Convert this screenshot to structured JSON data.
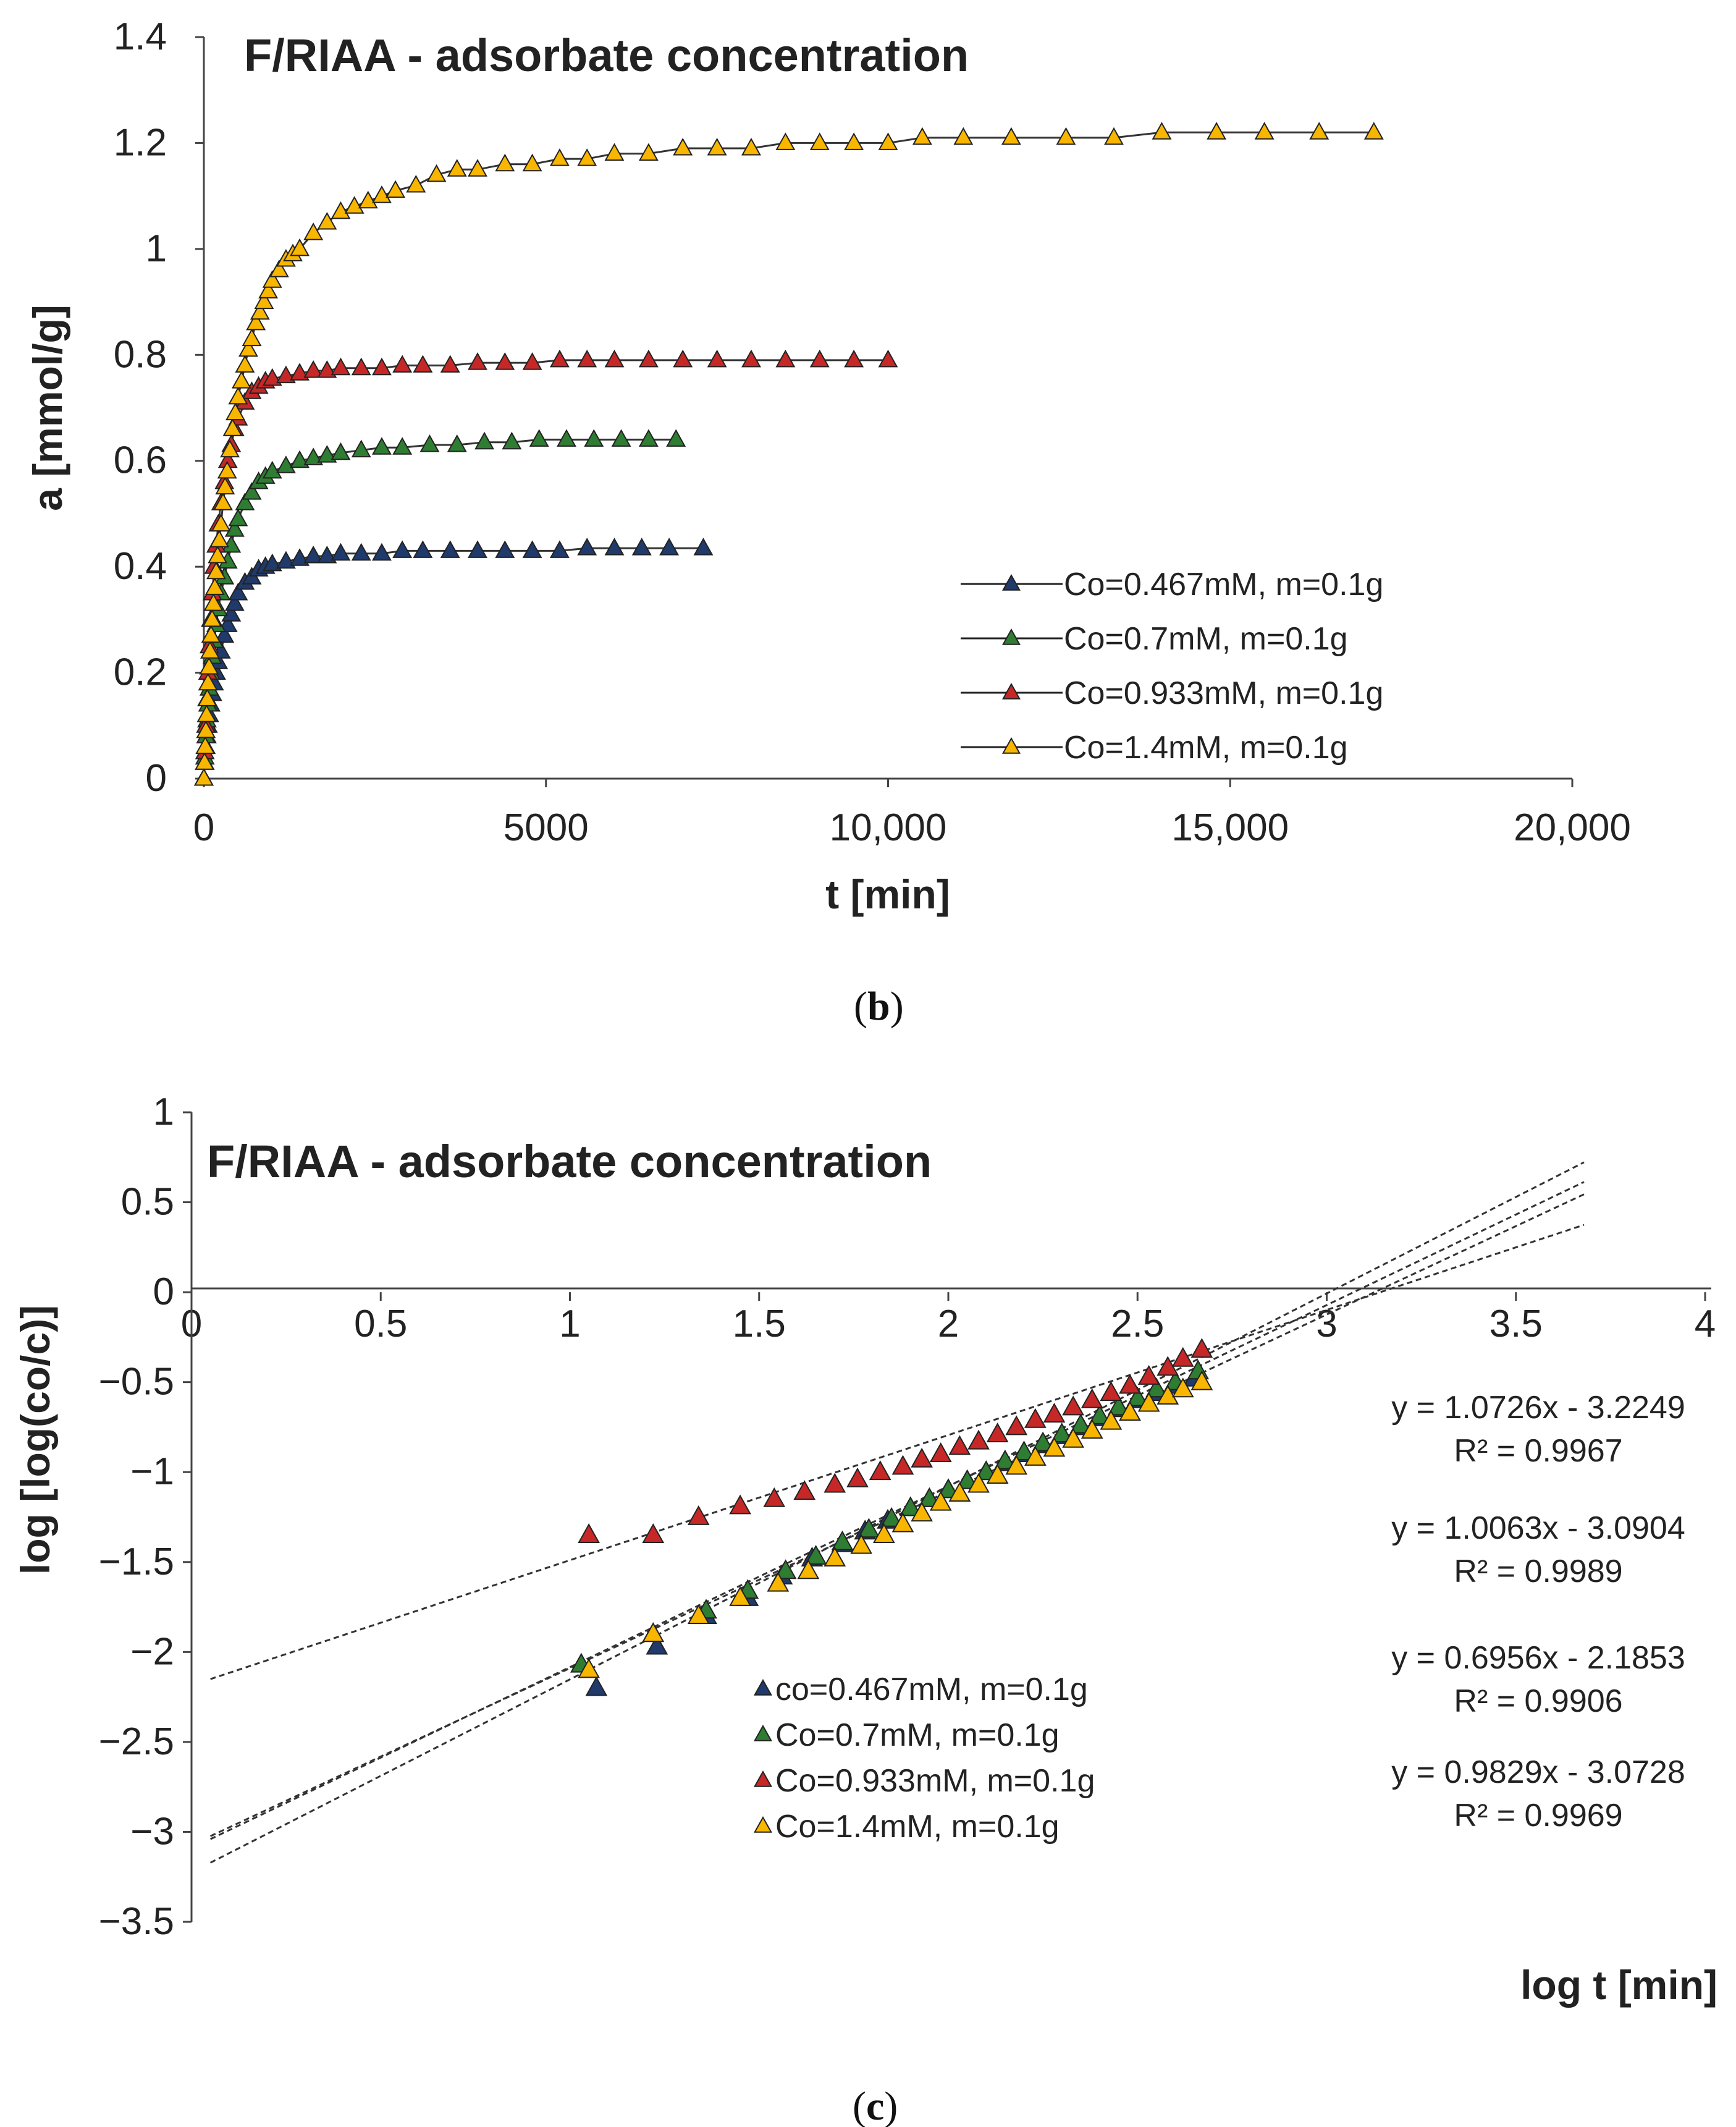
{
  "chart_data": [
    {
      "panel": "b",
      "type": "line",
      "title": "F/RIAA - adsorbate concentration",
      "xlabel": "t [min]",
      "ylabel": "a [mmol/g]",
      "xlim": [
        0,
        20000
      ],
      "ylim": [
        0,
        1.4
      ],
      "xticks": [
        0,
        5000,
        10000,
        15000,
        20000
      ],
      "xtick_labels": [
        "0",
        "5000",
        "10,000",
        "15,000",
        "20,000"
      ],
      "yticks": [
        0,
        0.2,
        0.4,
        0.6,
        0.8,
        1,
        1.2,
        1.4
      ],
      "ytick_labels": [
        "0",
        "0.2",
        "0.4",
        "0.6",
        "0.8",
        "1",
        "1.2",
        "1.4"
      ],
      "legend_position": "bottom-right",
      "caption_letter": "b",
      "series": [
        {
          "name": "Co=0.467mM, m=0.1g",
          "color": "#1f3a6b",
          "x": [
            0,
            15,
            30,
            45,
            60,
            80,
            100,
            125,
            150,
            180,
            210,
            250,
            300,
            350,
            400,
            450,
            500,
            600,
            700,
            800,
            900,
            1000,
            1200,
            1400,
            1600,
            1800,
            2000,
            2300,
            2600,
            2900,
            3200,
            3600,
            4000,
            4400,
            4800,
            5200,
            5600,
            6000,
            6400,
            6800,
            7300
          ],
          "y": [
            0,
            0.03,
            0.06,
            0.08,
            0.1,
            0.12,
            0.14,
            0.16,
            0.18,
            0.2,
            0.22,
            0.24,
            0.27,
            0.29,
            0.31,
            0.33,
            0.35,
            0.37,
            0.38,
            0.395,
            0.4,
            0.405,
            0.41,
            0.415,
            0.42,
            0.42,
            0.425,
            0.425,
            0.425,
            0.43,
            0.43,
            0.43,
            0.43,
            0.43,
            0.43,
            0.43,
            0.435,
            0.435,
            0.435,
            0.435,
            0.435
          ]
        },
        {
          "name": "Co=0.7mM, m=0.1g",
          "color": "#2e7d32",
          "x": [
            0,
            15,
            30,
            45,
            60,
            80,
            100,
            125,
            150,
            180,
            210,
            250,
            300,
            350,
            400,
            450,
            500,
            600,
            700,
            800,
            900,
            1000,
            1200,
            1400,
            1600,
            1800,
            2000,
            2300,
            2600,
            2900,
            3300,
            3700,
            4100,
            4500,
            4900,
            5300,
            5700,
            6100,
            6500,
            6900
          ],
          "y": [
            0,
            0.04,
            0.08,
            0.11,
            0.14,
            0.17,
            0.2,
            0.23,
            0.26,
            0.29,
            0.32,
            0.35,
            0.38,
            0.41,
            0.44,
            0.47,
            0.49,
            0.52,
            0.54,
            0.56,
            0.57,
            0.58,
            0.59,
            0.6,
            0.605,
            0.61,
            0.615,
            0.62,
            0.625,
            0.625,
            0.63,
            0.63,
            0.635,
            0.635,
            0.64,
            0.64,
            0.64,
            0.64,
            0.64,
            0.64
          ]
        },
        {
          "name": "Co=0.933mM, m=0.1g",
          "color": "#c62828",
          "x": [
            0,
            15,
            30,
            45,
            60,
            80,
            100,
            125,
            150,
            180,
            210,
            250,
            300,
            350,
            400,
            450,
            500,
            600,
            700,
            800,
            900,
            1000,
            1200,
            1400,
            1600,
            1800,
            2000,
            2300,
            2600,
            2900,
            3200,
            3600,
            4000,
            4400,
            4800,
            5200,
            5600,
            6000,
            6500,
            7000,
            7500,
            8000,
            8500,
            9000,
            9500,
            10000
          ],
          "y": [
            0,
            0.05,
            0.1,
            0.15,
            0.2,
            0.25,
            0.3,
            0.35,
            0.4,
            0.44,
            0.48,
            0.52,
            0.56,
            0.6,
            0.63,
            0.66,
            0.68,
            0.71,
            0.73,
            0.74,
            0.75,
            0.755,
            0.76,
            0.765,
            0.77,
            0.77,
            0.775,
            0.775,
            0.775,
            0.78,
            0.78,
            0.78,
            0.785,
            0.785,
            0.785,
            0.79,
            0.79,
            0.79,
            0.79,
            0.79,
            0.79,
            0.79,
            0.79,
            0.79,
            0.79,
            0.79
          ]
        },
        {
          "name": "Co=1.4mM, m=0.1g",
          "color": "#f9b600",
          "x": [
            0,
            10,
            20,
            30,
            40,
            50,
            60,
            75,
            90,
            105,
            120,
            140,
            160,
            180,
            200,
            225,
            250,
            280,
            310,
            340,
            380,
            420,
            460,
            500,
            550,
            600,
            650,
            700,
            760,
            820,
            880,
            940,
            1000,
            1100,
            1200,
            1300,
            1400,
            1600,
            1800,
            2000,
            2200,
            2400,
            2600,
            2800,
            3100,
            3400,
            3700,
            4000,
            4400,
            4800,
            5200,
            5600,
            6000,
            6500,
            7000,
            7500,
            8000,
            8500,
            9000,
            9500,
            10000,
            10500,
            11100,
            11800,
            12600,
            13300,
            14000,
            14800,
            15500,
            16300,
            17100
          ],
          "y": [
            0,
            0.03,
            0.06,
            0.09,
            0.12,
            0.15,
            0.18,
            0.21,
            0.24,
            0.27,
            0.3,
            0.33,
            0.36,
            0.39,
            0.42,
            0.45,
            0.48,
            0.52,
            0.55,
            0.58,
            0.62,
            0.66,
            0.69,
            0.72,
            0.75,
            0.78,
            0.81,
            0.83,
            0.86,
            0.88,
            0.9,
            0.92,
            0.94,
            0.96,
            0.98,
            0.99,
            1.0,
            1.03,
            1.05,
            1.07,
            1.08,
            1.09,
            1.1,
            1.11,
            1.12,
            1.14,
            1.15,
            1.15,
            1.16,
            1.16,
            1.17,
            1.17,
            1.18,
            1.18,
            1.19,
            1.19,
            1.19,
            1.2,
            1.2,
            1.2,
            1.2,
            1.21,
            1.21,
            1.21,
            1.21,
            1.21,
            1.22,
            1.22,
            1.22,
            1.22,
            1.22
          ]
        }
      ]
    },
    {
      "panel": "c",
      "type": "scatter",
      "title": "F/RIAA - adsorbate concentration",
      "xlabel": "log t [min]",
      "ylabel": "log [log(co/c)]",
      "xlim": [
        0,
        4
      ],
      "ylim": [
        -3.5,
        1
      ],
      "xticks": [
        0,
        0.5,
        1,
        1.5,
        2,
        2.5,
        3,
        3.5,
        4
      ],
      "xtick_labels": [
        "0",
        "0.5",
        "1",
        "1.5",
        "2",
        "2.5",
        "3",
        "3.5",
        "4"
      ],
      "yticks": [
        1,
        0.5,
        0,
        -0.5,
        -1,
        -1.5,
        -2,
        -2.5,
        -3,
        -3.5
      ],
      "ytick_labels": [
        "1",
        "0.5",
        "0",
        "−0.5",
        "−1",
        "−1.5",
        "−2",
        "−2.5",
        "−3",
        "−3.5"
      ],
      "legend_position": "bottom-center",
      "caption_letter": "c",
      "trendlines": [
        {
          "equation": "y = 1.0726x - 3.2249",
          "r2": "R² = 0.9967",
          "slope": 1.0726,
          "intercept": -3.2249
        },
        {
          "equation": "y = 1.0063x - 3.0904",
          "r2": "R² = 0.9989",
          "slope": 1.0063,
          "intercept": -3.0904
        },
        {
          "equation": "y = 0.6956x - 2.1853",
          "r2": "R² = 0.9906",
          "slope": 0.6956,
          "intercept": -2.1853
        },
        {
          "equation": "y = 0.9829x - 3.0728",
          "r2": "R² = 0.9969",
          "slope": 0.9829,
          "intercept": -3.0728
        }
      ],
      "trend_x_range": [
        0.05,
        3.68
      ],
      "series": [
        {
          "name": "co=0.467mM, m=0.1g",
          "color": "#1f3a6b",
          "x": [
            1.07,
            1.23,
            1.36,
            1.47,
            1.56,
            1.64,
            1.72,
            1.78,
            1.84,
            1.9,
            1.95,
            2.0,
            2.05,
            2.1,
            2.15,
            2.2,
            2.25,
            2.3,
            2.35,
            2.4,
            2.45,
            2.5,
            2.55,
            2.6,
            2.65
          ],
          "y": [
            -2.2,
            -1.97,
            -1.8,
            -1.7,
            -1.58,
            -1.48,
            -1.4,
            -1.33,
            -1.27,
            -1.2,
            -1.15,
            -1.1,
            -1.05,
            -1.0,
            -0.95,
            -0.9,
            -0.85,
            -0.8,
            -0.75,
            -0.7,
            -0.65,
            -0.6,
            -0.56,
            -0.52,
            -0.48
          ]
        },
        {
          "name": "Co=0.7mM, m=0.1g",
          "color": "#2e7d32",
          "x": [
            1.03,
            1.22,
            1.36,
            1.47,
            1.57,
            1.65,
            1.72,
            1.79,
            1.85,
            1.9,
            1.95,
            2.0,
            2.05,
            2.1,
            2.15,
            2.2,
            2.25,
            2.3,
            2.35,
            2.4,
            2.45,
            2.5,
            2.55,
            2.6,
            2.66
          ],
          "y": [
            -2.07,
            -1.9,
            -1.77,
            -1.66,
            -1.55,
            -1.47,
            -1.39,
            -1.32,
            -1.26,
            -1.2,
            -1.15,
            -1.1,
            -1.05,
            -1.0,
            -0.94,
            -0.89,
            -0.84,
            -0.79,
            -0.74,
            -0.69,
            -0.64,
            -0.59,
            -0.54,
            -0.5,
            -0.44
          ]
        },
        {
          "name": "Co=0.933mM, m=0.1g",
          "color": "#c62828",
          "x": [
            1.05,
            1.22,
            1.34,
            1.45,
            1.54,
            1.62,
            1.7,
            1.76,
            1.82,
            1.88,
            1.93,
            1.98,
            2.03,
            2.08,
            2.13,
            2.18,
            2.23,
            2.28,
            2.33,
            2.38,
            2.43,
            2.48,
            2.53,
            2.58,
            2.62,
            2.67
          ],
          "y": [
            -1.35,
            -1.35,
            -1.25,
            -1.19,
            -1.15,
            -1.11,
            -1.07,
            -1.04,
            -1.0,
            -0.97,
            -0.93,
            -0.9,
            -0.86,
            -0.83,
            -0.79,
            -0.75,
            -0.71,
            -0.68,
            -0.64,
            -0.6,
            -0.56,
            -0.52,
            -0.47,
            -0.42,
            -0.37,
            -0.32
          ]
        },
        {
          "name": "Co=1.4mM, m=0.1g",
          "color": "#f9b600",
          "x": [
            1.05,
            1.22,
            1.34,
            1.45,
            1.55,
            1.63,
            1.7,
            1.77,
            1.83,
            1.88,
            1.93,
            1.98,
            2.03,
            2.08,
            2.13,
            2.18,
            2.23,
            2.28,
            2.33,
            2.38,
            2.43,
            2.48,
            2.53,
            2.58,
            2.62,
            2.67
          ],
          "y": [
            -2.1,
            -1.9,
            -1.8,
            -1.7,
            -1.62,
            -1.55,
            -1.48,
            -1.41,
            -1.35,
            -1.29,
            -1.23,
            -1.17,
            -1.12,
            -1.07,
            -1.02,
            -0.97,
            -0.92,
            -0.87,
            -0.82,
            -0.77,
            -0.72,
            -0.67,
            -0.62,
            -0.58,
            -0.54,
            -0.5
          ]
        }
      ]
    }
  ]
}
